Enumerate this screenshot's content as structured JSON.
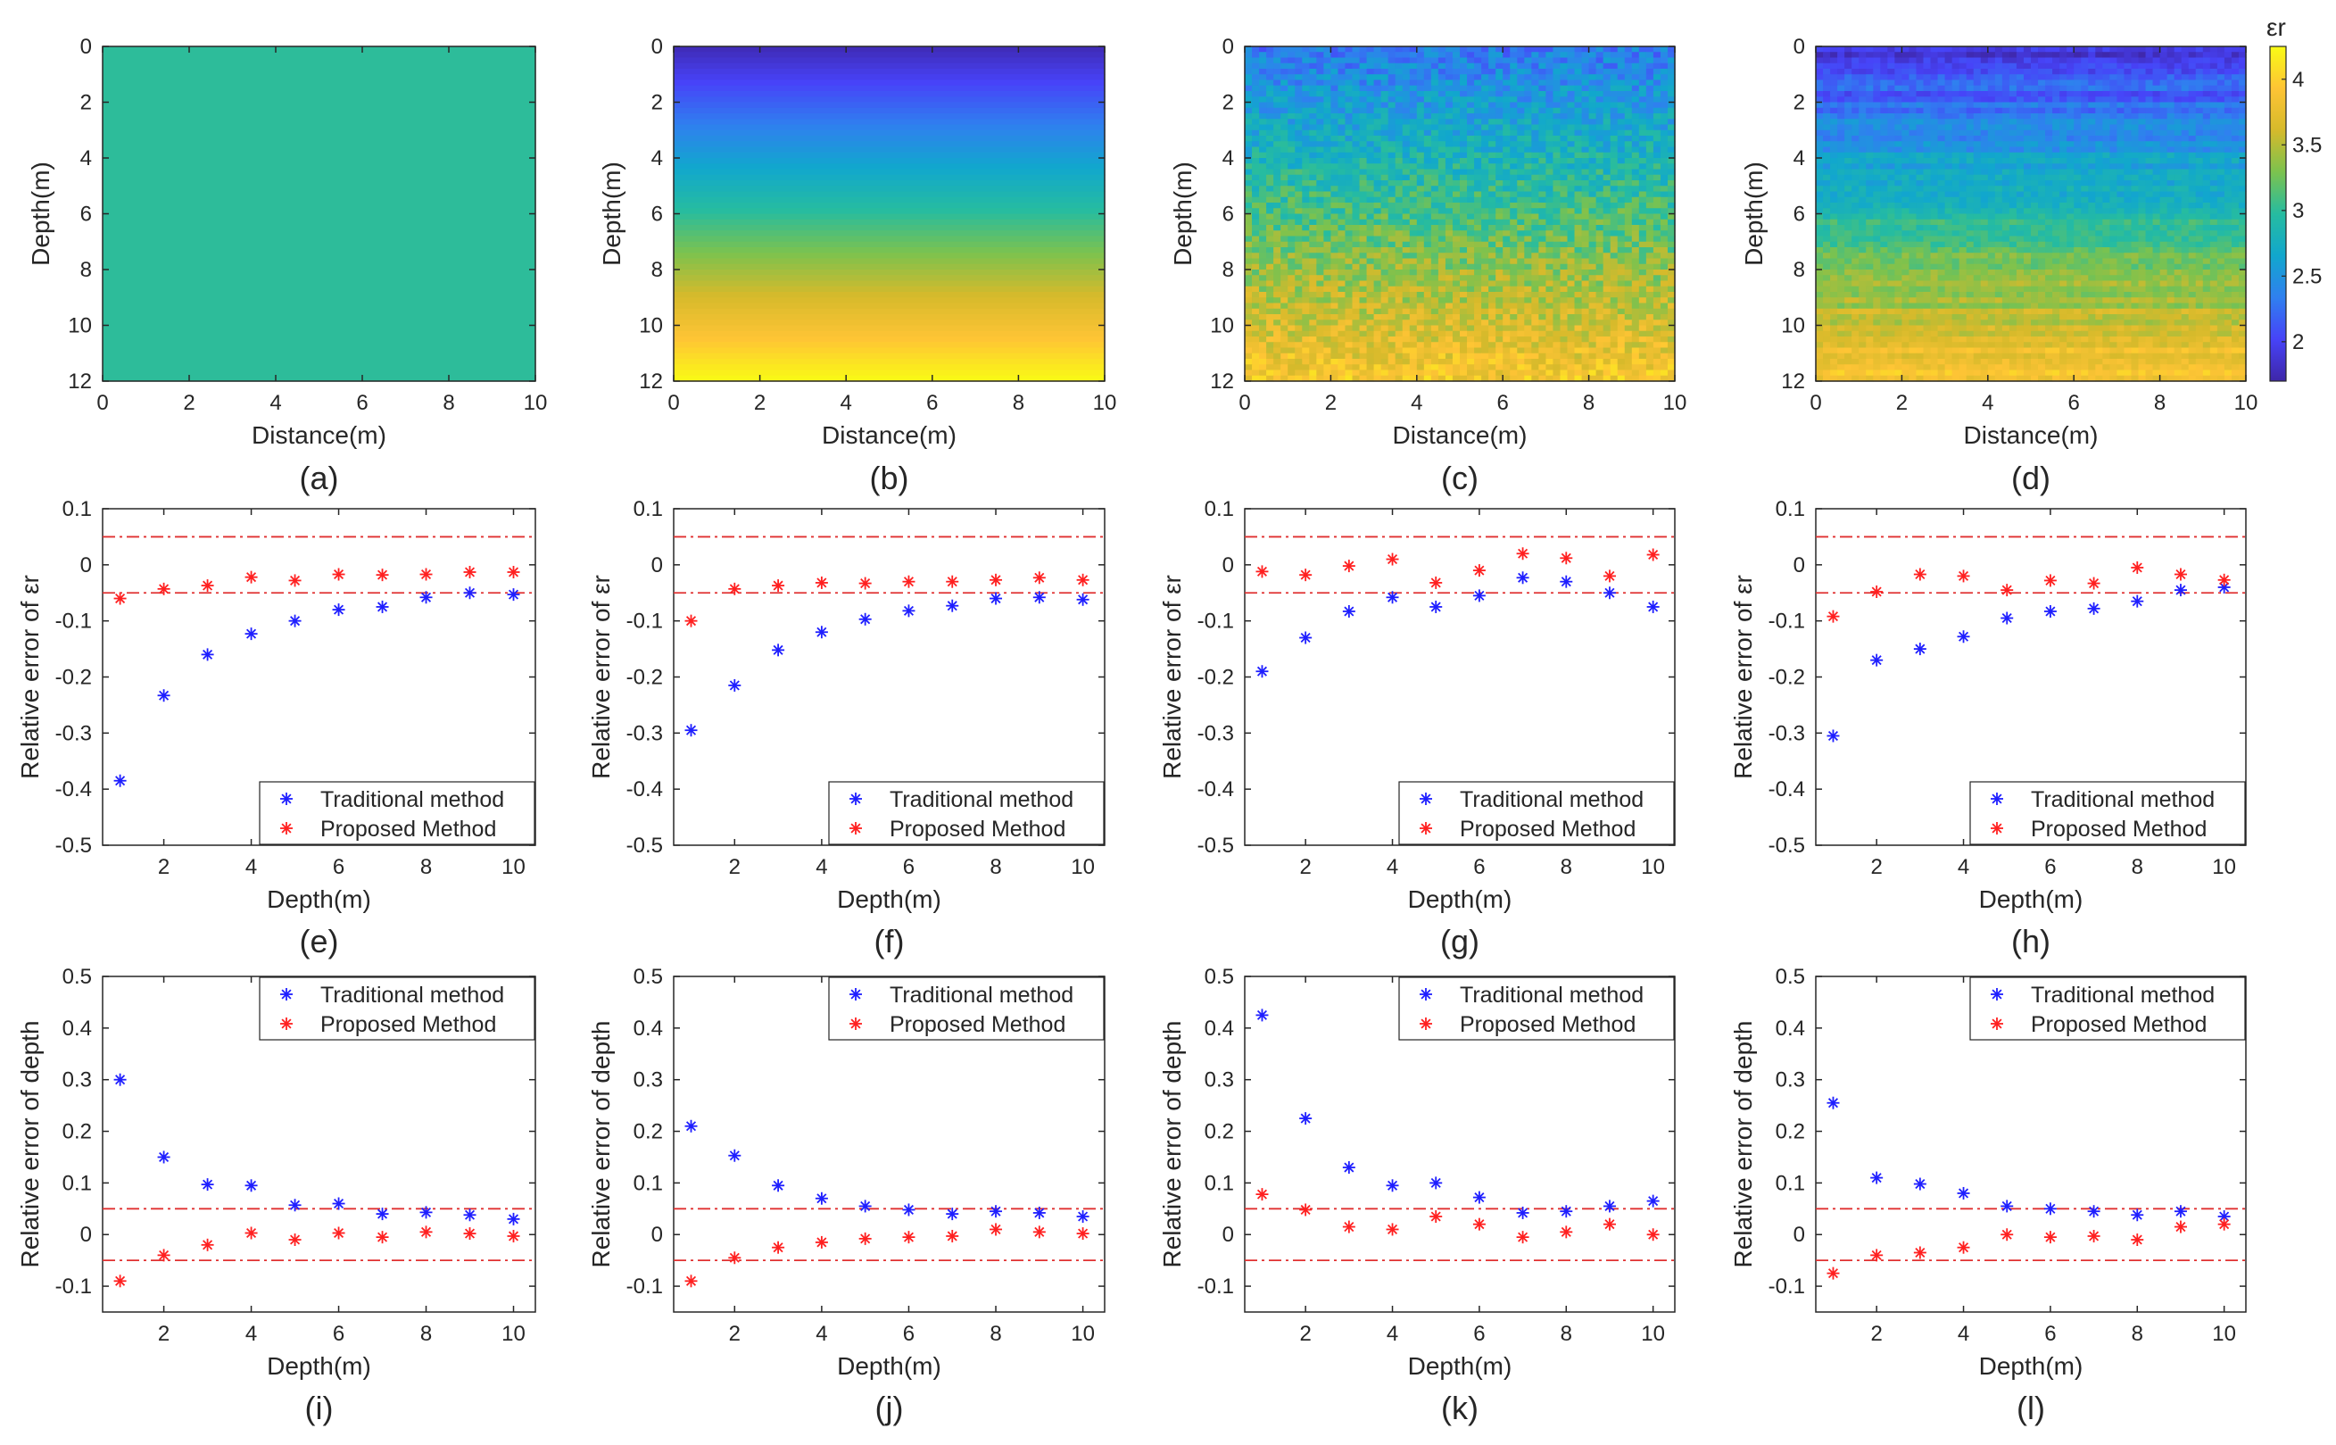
{
  "colorbar": {
    "label": "εr",
    "ticks": [
      2,
      2.5,
      3,
      3.5,
      4
    ],
    "tick_labels": [
      "2",
      "2.5",
      "3",
      "3.5",
      "4"
    ],
    "range": [
      1.7,
      4.25
    ],
    "colormap": [
      "#3e26a8",
      "#4743f8",
      "#2f80ef",
      "#11a7cd",
      "#26bca0",
      "#7cc24e",
      "#d6ba2b",
      "#fec435",
      "#f9fb15"
    ]
  },
  "colors": {
    "traditional": "#1f1fff",
    "proposed": "#ff2020",
    "threshold_line": "#e03030",
    "axis": "#262626"
  },
  "chart_data": [
    {
      "id": "a",
      "type": "heatmap",
      "panel_label": "(a)",
      "xlabel": "Distance(m)",
      "ylabel": "Depth(m)",
      "xlim": [
        0,
        10
      ],
      "ylim": [
        0,
        12
      ],
      "xticks": [
        0,
        2,
        4,
        6,
        8,
        10
      ],
      "yticks": [
        0,
        2,
        4,
        6,
        8,
        10,
        12
      ],
      "field": "uniform",
      "eps_top": 3.0,
      "eps_bottom": 3.0,
      "noise": 0
    },
    {
      "id": "b",
      "type": "heatmap",
      "panel_label": "(b)",
      "xlabel": "Distance(m)",
      "ylabel": "Depth(m)",
      "xlim": [
        0,
        10
      ],
      "ylim": [
        0,
        12
      ],
      "xticks": [
        0,
        2,
        4,
        6,
        8,
        10
      ],
      "yticks": [
        0,
        2,
        4,
        6,
        8,
        10,
        12
      ],
      "field": "linear-gradient",
      "eps_top": 1.75,
      "eps_bottom": 4.25,
      "noise": 0
    },
    {
      "id": "c",
      "type": "heatmap",
      "panel_label": "(c)",
      "xlabel": "Distance(m)",
      "ylabel": "Depth(m)",
      "xlim": [
        0,
        10
      ],
      "ylim": [
        0,
        12
      ],
      "xticks": [
        0,
        2,
        4,
        6,
        8,
        10
      ],
      "yticks": [
        0,
        2,
        4,
        6,
        8,
        10,
        12
      ],
      "field": "gradient-random",
      "eps_top": 2.3,
      "eps_bottom": 3.9,
      "noise": 0.25
    },
    {
      "id": "d",
      "type": "heatmap",
      "panel_label": "(d)",
      "xlabel": "Distance(m)",
      "ylabel": "Depth(m)",
      "xlim": [
        0,
        10
      ],
      "ylim": [
        0,
        12
      ],
      "xticks": [
        0,
        2,
        4,
        6,
        8,
        10
      ],
      "yticks": [
        0,
        2,
        4,
        6,
        8,
        10,
        12
      ],
      "field": "gradient-layered",
      "eps_top": 1.9,
      "eps_bottom": 3.95,
      "noise": 0.12
    },
    {
      "id": "e",
      "type": "scatter",
      "panel_label": "(e)",
      "xlabel": "Depth(m)",
      "ylabel": "Relative error of εr",
      "xlim": [
        0.6,
        10.5
      ],
      "ylim": [
        -0.5,
        0.1
      ],
      "xticks": [
        2,
        4,
        6,
        8,
        10
      ],
      "yticks": [
        -0.5,
        -0.4,
        -0.3,
        -0.2,
        -0.1,
        0,
        0.1
      ],
      "ytick_labels": [
        "-0.5",
        "-0.4",
        "-0.3",
        "-0.2",
        "-0.1",
        "0",
        "0.1"
      ],
      "hlines": [
        0.05,
        -0.05
      ],
      "legend_position": "bottom-right",
      "x": [
        1,
        2,
        3,
        4,
        5,
        6,
        7,
        8,
        9,
        10
      ],
      "series": [
        {
          "name": "Traditional method",
          "values": [
            -0.385,
            -0.233,
            -0.16,
            -0.123,
            -0.1,
            -0.08,
            -0.075,
            -0.058,
            -0.05,
            -0.053
          ]
        },
        {
          "name": "Proposed Method",
          "values": [
            -0.06,
            -0.043,
            -0.037,
            -0.022,
            -0.028,
            -0.017,
            -0.018,
            -0.017,
            -0.013,
            -0.013
          ]
        }
      ]
    },
    {
      "id": "f",
      "type": "scatter",
      "panel_label": "(f)",
      "xlabel": "Depth(m)",
      "ylabel": "Relative error of εr",
      "xlim": [
        0.6,
        10.5
      ],
      "ylim": [
        -0.5,
        0.1
      ],
      "xticks": [
        2,
        4,
        6,
        8,
        10
      ],
      "yticks": [
        -0.5,
        -0.4,
        -0.3,
        -0.2,
        -0.1,
        0,
        0.1
      ],
      "ytick_labels": [
        "-0.5",
        "-0.4",
        "-0.3",
        "-0.2",
        "-0.1",
        "0",
        "0.1"
      ],
      "hlines": [
        0.05,
        -0.05
      ],
      "legend_position": "bottom-right",
      "x": [
        1,
        2,
        3,
        4,
        5,
        6,
        7,
        8,
        9,
        10
      ],
      "series": [
        {
          "name": "Traditional method",
          "values": [
            -0.295,
            -0.215,
            -0.152,
            -0.12,
            -0.097,
            -0.082,
            -0.073,
            -0.06,
            -0.058,
            -0.062
          ]
        },
        {
          "name": "Proposed Method",
          "values": [
            -0.1,
            -0.043,
            -0.037,
            -0.032,
            -0.033,
            -0.03,
            -0.03,
            -0.027,
            -0.023,
            -0.027
          ]
        }
      ]
    },
    {
      "id": "g",
      "type": "scatter",
      "panel_label": "(g)",
      "xlabel": "Depth(m)",
      "ylabel": "Relative error of εr",
      "xlim": [
        0.6,
        10.5
      ],
      "ylim": [
        -0.5,
        0.1
      ],
      "xticks": [
        2,
        4,
        6,
        8,
        10
      ],
      "yticks": [
        -0.5,
        -0.4,
        -0.3,
        -0.2,
        -0.1,
        0,
        0.1
      ],
      "ytick_labels": [
        "-0.5",
        "-0.4",
        "-0.3",
        "-0.2",
        "-0.1",
        "0",
        "0.1"
      ],
      "hlines": [
        0.05,
        -0.05
      ],
      "legend_position": "bottom-right",
      "x": [
        1,
        2,
        3,
        4,
        5,
        6,
        7,
        8,
        9,
        10
      ],
      "series": [
        {
          "name": "Traditional method",
          "values": [
            -0.19,
            -0.13,
            -0.083,
            -0.058,
            -0.075,
            -0.055,
            -0.023,
            -0.03,
            -0.05,
            -0.075
          ]
        },
        {
          "name": "Proposed Method",
          "values": [
            -0.012,
            -0.018,
            -0.002,
            0.01,
            -0.032,
            -0.01,
            0.02,
            0.012,
            -0.02,
            0.018
          ]
        }
      ]
    },
    {
      "id": "h",
      "type": "scatter",
      "panel_label": "(h)",
      "xlabel": "Depth(m)",
      "ylabel": "Relative error of εr",
      "xlim": [
        0.6,
        10.5
      ],
      "ylim": [
        -0.5,
        0.1
      ],
      "xticks": [
        2,
        4,
        6,
        8,
        10
      ],
      "yticks": [
        -0.5,
        -0.4,
        -0.3,
        -0.2,
        -0.1,
        0,
        0.1
      ],
      "ytick_labels": [
        "-0.5",
        "-0.4",
        "-0.3",
        "-0.2",
        "-0.1",
        "0",
        "0.1"
      ],
      "hlines": [
        0.05,
        -0.05
      ],
      "legend_position": "bottom-right",
      "x": [
        1,
        2,
        3,
        4,
        5,
        6,
        7,
        8,
        9,
        10
      ],
      "series": [
        {
          "name": "Traditional method",
          "values": [
            -0.305,
            -0.17,
            -0.15,
            -0.128,
            -0.095,
            -0.083,
            -0.078,
            -0.065,
            -0.045,
            -0.04
          ]
        },
        {
          "name": "Proposed Method",
          "values": [
            -0.092,
            -0.048,
            -0.017,
            -0.02,
            -0.045,
            -0.028,
            -0.033,
            -0.005,
            -0.017,
            -0.027
          ]
        }
      ]
    },
    {
      "id": "i",
      "type": "scatter",
      "panel_label": "(i)",
      "xlabel": "Depth(m)",
      "ylabel": "Relative error of depth",
      "xlim": [
        0.6,
        10.5
      ],
      "ylim": [
        -0.15,
        0.5
      ],
      "xticks": [
        2,
        4,
        6,
        8,
        10
      ],
      "yticks": [
        -0.1,
        0,
        0.1,
        0.2,
        0.3,
        0.4,
        0.5
      ],
      "ytick_labels": [
        "-0.1",
        "0",
        "0.1",
        "0.2",
        "0.3",
        "0.4",
        "0.5"
      ],
      "hlines": [
        0.05,
        -0.05
      ],
      "legend_position": "top-right",
      "x": [
        1,
        2,
        3,
        4,
        5,
        6,
        7,
        8,
        9,
        10
      ],
      "series": [
        {
          "name": "Traditional method",
          "values": [
            0.3,
            0.15,
            0.097,
            0.095,
            0.057,
            0.06,
            0.04,
            0.043,
            0.038,
            0.03
          ]
        },
        {
          "name": "Proposed Method",
          "values": [
            -0.09,
            -0.04,
            -0.02,
            0.003,
            -0.01,
            0.003,
            -0.005,
            0.005,
            0.002,
            -0.003
          ]
        }
      ]
    },
    {
      "id": "j",
      "type": "scatter",
      "panel_label": "(j)",
      "xlabel": "Depth(m)",
      "ylabel": "Relative error of depth",
      "xlim": [
        0.6,
        10.5
      ],
      "ylim": [
        -0.15,
        0.5
      ],
      "xticks": [
        2,
        4,
        6,
        8,
        10
      ],
      "yticks": [
        -0.1,
        0,
        0.1,
        0.2,
        0.3,
        0.4,
        0.5
      ],
      "ytick_labels": [
        "-0.1",
        "0",
        "0.1",
        "0.2",
        "0.3",
        "0.4",
        "0.5"
      ],
      "hlines": [
        0.05,
        -0.05
      ],
      "legend_position": "top-right",
      "x": [
        1,
        2,
        3,
        4,
        5,
        6,
        7,
        8,
        9,
        10
      ],
      "series": [
        {
          "name": "Traditional method",
          "values": [
            0.21,
            0.153,
            0.095,
            0.07,
            0.055,
            0.048,
            0.04,
            0.045,
            0.042,
            0.035
          ]
        },
        {
          "name": "Proposed Method",
          "values": [
            -0.09,
            -0.045,
            -0.025,
            -0.015,
            -0.008,
            -0.005,
            -0.003,
            0.01,
            0.005,
            0.002
          ]
        }
      ]
    },
    {
      "id": "k",
      "type": "scatter",
      "panel_label": "(k)",
      "xlabel": "Depth(m)",
      "ylabel": "Relative error of depth",
      "xlim": [
        0.6,
        10.5
      ],
      "ylim": [
        -0.15,
        0.5
      ],
      "xticks": [
        2,
        4,
        6,
        8,
        10
      ],
      "yticks": [
        -0.1,
        0,
        0.1,
        0.2,
        0.3,
        0.4,
        0.5
      ],
      "ytick_labels": [
        "-0.1",
        "0",
        "0.1",
        "0.2",
        "0.3",
        "0.4",
        "0.5"
      ],
      "hlines": [
        0.05,
        -0.05
      ],
      "legend_position": "top-right",
      "x": [
        1,
        2,
        3,
        4,
        5,
        6,
        7,
        8,
        9,
        10
      ],
      "series": [
        {
          "name": "Traditional method",
          "values": [
            0.425,
            0.225,
            0.13,
            0.095,
            0.1,
            0.072,
            0.042,
            0.045,
            0.055,
            0.065
          ]
        },
        {
          "name": "Proposed Method",
          "values": [
            0.078,
            0.048,
            0.015,
            0.01,
            0.035,
            0.02,
            -0.005,
            0.005,
            0.02,
            0
          ]
        }
      ]
    },
    {
      "id": "l",
      "type": "scatter",
      "panel_label": "(l)",
      "xlabel": "Depth(m)",
      "ylabel": "Relative error of depth",
      "xlim": [
        0.6,
        10.5
      ],
      "ylim": [
        -0.15,
        0.5
      ],
      "xticks": [
        2,
        4,
        6,
        8,
        10
      ],
      "yticks": [
        -0.1,
        0,
        0.1,
        0.2,
        0.3,
        0.4,
        0.5
      ],
      "ytick_labels": [
        "-0.1",
        "0",
        "0.1",
        "0.2",
        "0.3",
        "0.4",
        "0.5"
      ],
      "hlines": [
        0.05,
        -0.05
      ],
      "legend_position": "top-right",
      "x": [
        1,
        2,
        3,
        4,
        5,
        6,
        7,
        8,
        9,
        10
      ],
      "series": [
        {
          "name": "Traditional method",
          "values": [
            0.255,
            0.11,
            0.098,
            0.08,
            0.055,
            0.05,
            0.045,
            0.038,
            0.045,
            0.035
          ]
        },
        {
          "name": "Proposed Method",
          "values": [
            -0.075,
            -0.04,
            -0.035,
            -0.025,
            0,
            -0.005,
            -0.003,
            -0.01,
            0.015,
            0.02
          ]
        }
      ]
    }
  ]
}
